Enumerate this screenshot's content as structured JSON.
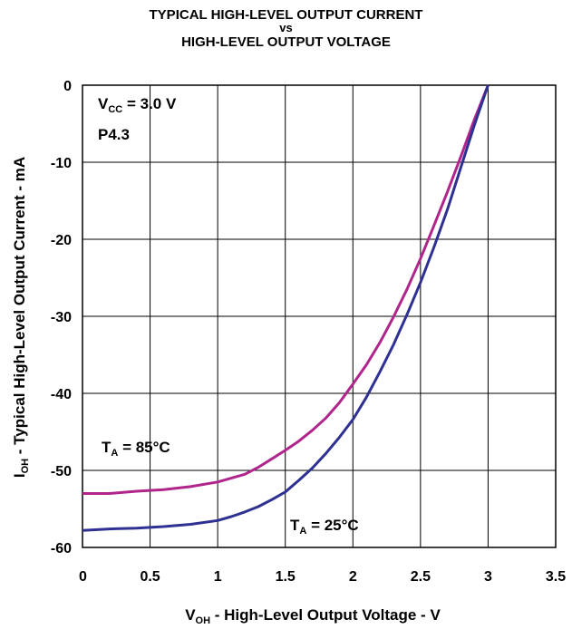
{
  "chart_data": {
    "type": "line",
    "title_lines": [
      "TYPICAL HIGH-LEVEL OUTPUT CURRENT",
      "vs",
      "HIGH-LEVEL OUTPUT VOLTAGE"
    ],
    "xlabel": {
      "main": "V",
      "sub": "OH",
      "rest": " - High-Level Output Voltage - V"
    },
    "ylabel": {
      "main": "I",
      "sub": "OH",
      "rest": " - Typical High-Level Output Current - mA"
    },
    "xlim": [
      0,
      3.5
    ],
    "ylim": [
      -60,
      0
    ],
    "x_ticks": [
      "0",
      "0.5",
      "1",
      "1.5",
      "2",
      "2.5",
      "3",
      "3.5"
    ],
    "y_ticks": [
      "0",
      "-10",
      "-20",
      "-30",
      "-40",
      "-50",
      "-60"
    ],
    "grid": true,
    "annotations": {
      "vcc": {
        "main": "V",
        "sub": "CC",
        "rest": " = 3.0 V"
      },
      "pin": "P4.3",
      "t85": {
        "main": "T",
        "sub": "A",
        "rest": " = 85°C"
      },
      "t25": {
        "main": "T",
        "sub": "A",
        "rest": " = 25°C"
      }
    },
    "series": [
      {
        "name": "TA = 85°C",
        "color": "#b0258c",
        "x": [
          0,
          0.2,
          0.4,
          0.6,
          0.8,
          1.0,
          1.2,
          1.3,
          1.4,
          1.5,
          1.6,
          1.7,
          1.8,
          1.9,
          2.0,
          2.1,
          2.2,
          2.3,
          2.4,
          2.5,
          2.6,
          2.7,
          2.8,
          2.9,
          3.0
        ],
        "y": [
          -53,
          -53,
          -52.7,
          -52.5,
          -52.1,
          -51.5,
          -50.5,
          -49.6,
          -48.5,
          -47.4,
          -46.2,
          -44.8,
          -43.2,
          -41.2,
          -38.8,
          -36.3,
          -33.4,
          -30.1,
          -26.5,
          -22.5,
          -18.2,
          -13.8,
          -9.2,
          -4.4,
          0
        ]
      },
      {
        "name": "TA = 25°C",
        "color": "#2e3192",
        "x": [
          0,
          0.2,
          0.4,
          0.6,
          0.8,
          1.0,
          1.1,
          1.2,
          1.3,
          1.4,
          1.5,
          1.6,
          1.7,
          1.8,
          1.9,
          2.0,
          2.1,
          2.2,
          2.3,
          2.4,
          2.5,
          2.6,
          2.7,
          2.8,
          2.9,
          3.0
        ],
        "y": [
          -57.8,
          -57.6,
          -57.5,
          -57.3,
          -57.0,
          -56.5,
          -56.0,
          -55.4,
          -54.7,
          -53.8,
          -52.8,
          -51.3,
          -49.7,
          -47.8,
          -45.7,
          -43.4,
          -40.5,
          -37.2,
          -33.7,
          -29.8,
          -25.6,
          -21.0,
          -16.1,
          -10.6,
          -5.1,
          0
        ]
      }
    ]
  }
}
